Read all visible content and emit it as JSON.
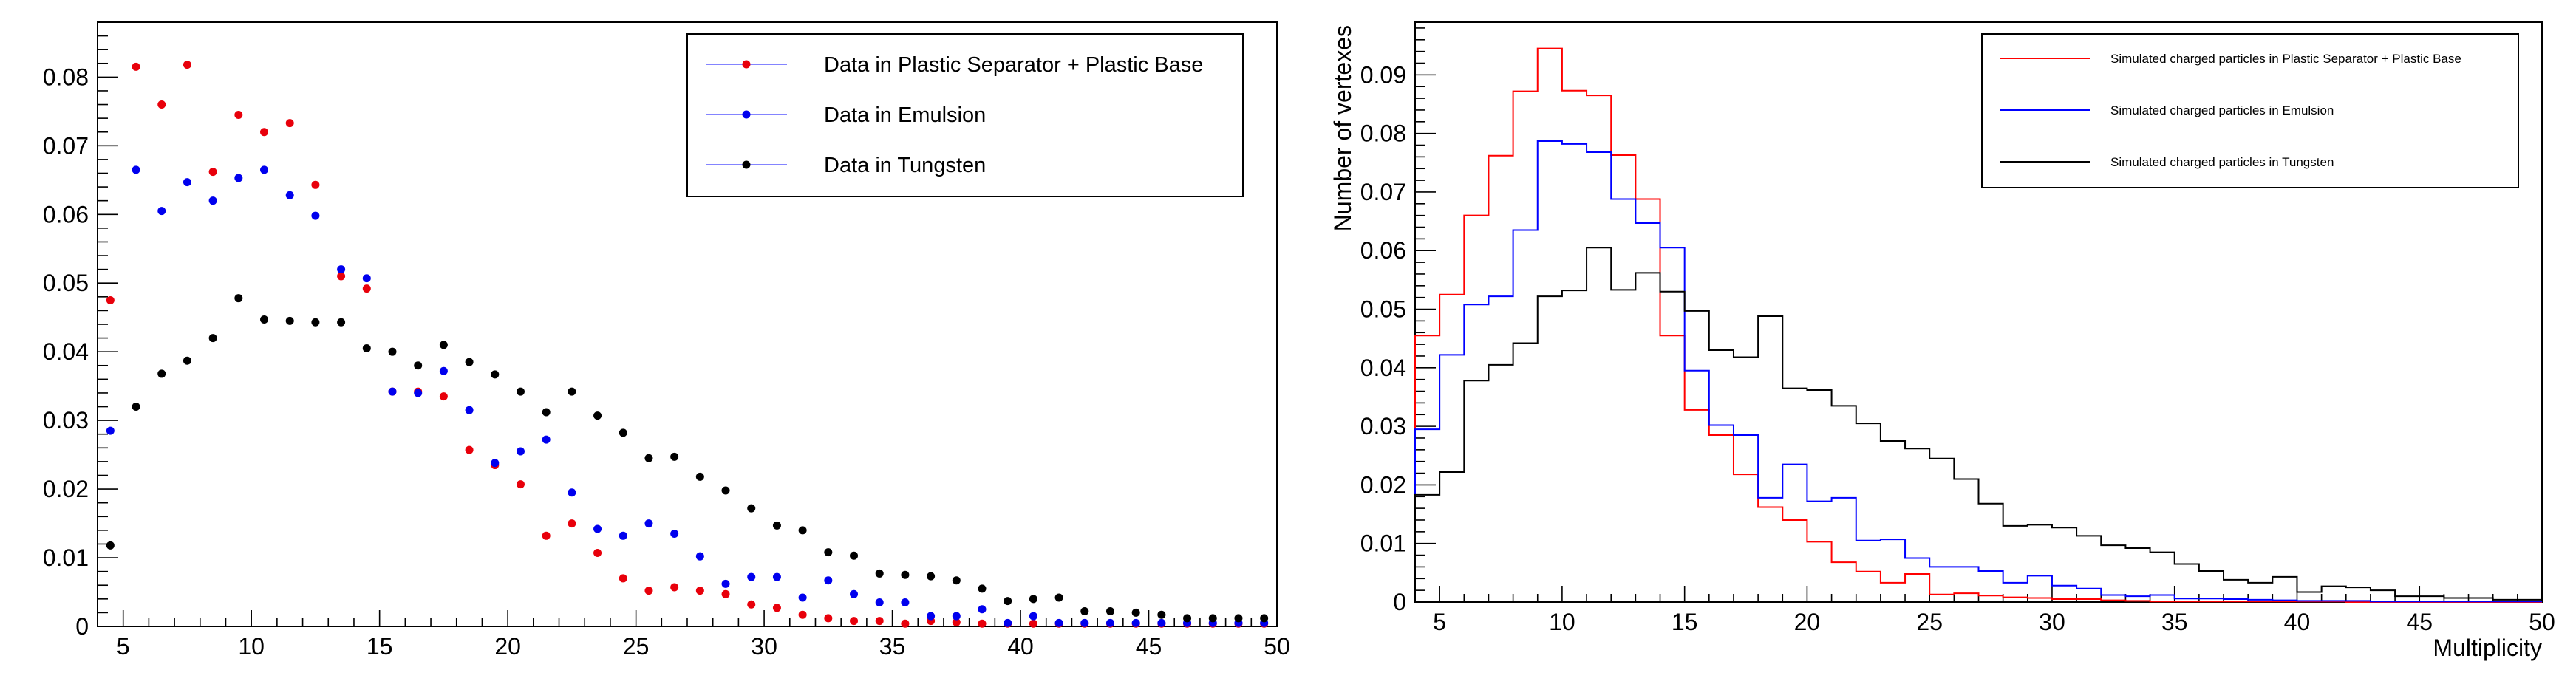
{
  "chart_data": [
    {
      "type": "scatter",
      "title": "",
      "xlabel": "",
      "ylabel": "",
      "xlim": [
        4,
        50
      ],
      "ylim": [
        0,
        0.088
      ],
      "x_ticks": [
        5,
        10,
        15,
        20,
        25,
        30,
        35,
        40,
        45,
        50
      ],
      "y_ticks": [
        0.01,
        0.02,
        0.03,
        0.04,
        0.05,
        0.06,
        0.07,
        0.08
      ],
      "y_tick_zero": "0",
      "legend_position": "top-right",
      "series": [
        {
          "name": "Data in Plastic Separator + Plastic Base",
          "color": "#e8000b",
          "x": [
            4.5,
            5.5,
            6.5,
            7.5,
            8.5,
            9.5,
            10.5,
            11.5,
            12.5,
            13.5,
            14.5,
            15.5,
            16.5,
            17.5,
            18.5,
            19.5,
            20.5,
            21.5,
            22.5,
            23.5,
            24.5,
            25.5,
            26.5,
            27.5,
            28.5,
            29.5,
            30.5,
            31.5,
            32.5,
            33.5,
            34.5,
            35.5,
            36.5,
            37.5,
            38.5,
            39.5,
            40.5,
            41.5,
            42.5,
            43.5,
            44.5,
            45.5,
            46.5,
            47.5,
            48.5,
            49.5
          ],
          "values": [
            0.0475,
            0.0815,
            0.076,
            0.0818,
            0.0662,
            0.0745,
            0.072,
            0.0733,
            0.0643,
            0.051,
            0.0492,
            0.0342,
            0.0342,
            0.0335,
            0.0257,
            0.0235,
            0.0207,
            0.0132,
            0.015,
            0.0107,
            0.007,
            0.0052,
            0.0057,
            0.0052,
            0.0047,
            0.0032,
            0.0027,
            0.0017,
            0.0012,
            0.0008,
            0.0008,
            0.0004,
            0.0008,
            0.0006,
            0.0004,
            0.0004,
            0.0004,
            0.0004,
            0.0004,
            0.0004,
            0.0004,
            0.0004,
            0.0004,
            0.0004,
            0.0004,
            0.0004
          ]
        },
        {
          "name": "Data in Emulsion",
          "color": "#0000ee",
          "x": [
            4.5,
            5.5,
            6.5,
            7.5,
            8.5,
            9.5,
            10.5,
            11.5,
            12.5,
            13.5,
            14.5,
            15.5,
            16.5,
            17.5,
            18.5,
            19.5,
            20.5,
            21.5,
            22.5,
            23.5,
            24.5,
            25.5,
            26.5,
            27.5,
            28.5,
            29.5,
            30.5,
            31.5,
            32.5,
            33.5,
            34.5,
            35.5,
            36.5,
            37.5,
            38.5,
            39.5,
            40.5,
            41.5,
            42.5,
            43.5,
            44.5,
            45.5,
            46.5,
            47.5,
            48.5,
            49.5
          ],
          "values": [
            0.0285,
            0.0665,
            0.0605,
            0.0647,
            0.062,
            0.0653,
            0.0665,
            0.0628,
            0.0598,
            0.052,
            0.0507,
            0.0342,
            0.034,
            0.0372,
            0.0315,
            0.0238,
            0.0255,
            0.0272,
            0.0195,
            0.0142,
            0.0132,
            0.015,
            0.0135,
            0.0102,
            0.0062,
            0.0072,
            0.0072,
            0.0042,
            0.0067,
            0.0047,
            0.0035,
            0.0035,
            0.0015,
            0.0015,
            0.0025,
            0.0005,
            0.0015,
            0.0005,
            0.0005,
            0.0005,
            0.0005,
            0.0005,
            0.0005,
            0.0005,
            0.0005,
            0.0005
          ]
        },
        {
          "name": "Data in Tungsten",
          "color": "#000000",
          "x": [
            4.5,
            5.5,
            6.5,
            7.5,
            8.5,
            9.5,
            10.5,
            11.5,
            12.5,
            13.5,
            14.5,
            15.5,
            16.5,
            17.5,
            18.5,
            19.5,
            20.5,
            21.5,
            22.5,
            23.5,
            24.5,
            25.5,
            26.5,
            27.5,
            28.5,
            29.5,
            30.5,
            31.5,
            32.5,
            33.5,
            34.5,
            35.5,
            36.5,
            37.5,
            38.5,
            39.5,
            40.5,
            41.5,
            42.5,
            43.5,
            44.5,
            45.5,
            46.5,
            47.5,
            48.5,
            49.5
          ],
          "values": [
            0.0118,
            0.032,
            0.0368,
            0.0387,
            0.042,
            0.0478,
            0.0447,
            0.0445,
            0.0443,
            0.0443,
            0.0405,
            0.04,
            0.038,
            0.041,
            0.0385,
            0.0367,
            0.0342,
            0.0312,
            0.0342,
            0.0307,
            0.0282,
            0.0245,
            0.0247,
            0.0218,
            0.0198,
            0.0172,
            0.0147,
            0.014,
            0.0108,
            0.0103,
            0.0077,
            0.0075,
            0.0073,
            0.0067,
            0.0055,
            0.0037,
            0.004,
            0.0042,
            0.0022,
            0.0022,
            0.002,
            0.0017,
            0.0012,
            0.0012,
            0.0012,
            0.0012
          ]
        }
      ]
    },
    {
      "type": "line",
      "title": "",
      "xlabel": "Multiplicity",
      "ylabel": "Number of vertexes",
      "xlim": [
        4,
        50
      ],
      "ylim": [
        0,
        0.099
      ],
      "x_ticks": [
        5,
        10,
        15,
        20,
        25,
        30,
        35,
        40,
        45,
        50
      ],
      "y_ticks": [
        0.01,
        0.02,
        0.03,
        0.04,
        0.05,
        0.06,
        0.07,
        0.08,
        0.09
      ],
      "y_tick_zero": "0",
      "legend_position": "top-right",
      "bin_edges": [
        4,
        5,
        6,
        7,
        8,
        9,
        10,
        11,
        12,
        13,
        14,
        15,
        16,
        17,
        18,
        19,
        20,
        21,
        22,
        23,
        24,
        25,
        26,
        27,
        28,
        29,
        30,
        31,
        32,
        33,
        34,
        35,
        36,
        37,
        38,
        39,
        40,
        41,
        42,
        43,
        44,
        45,
        46,
        47,
        48,
        49,
        50
      ],
      "series": [
        {
          "name": "Simulated charged particles in Plastic Separator + Plastic Base",
          "color": "#ff0000",
          "values": [
            0.0455,
            0.0525,
            0.066,
            0.0762,
            0.0872,
            0.0945,
            0.0873,
            0.0865,
            0.0763,
            0.0688,
            0.0455,
            0.0328,
            0.0285,
            0.0218,
            0.0162,
            0.014,
            0.0103,
            0.0068,
            0.0052,
            0.0033,
            0.0048,
            0.0013,
            0.0015,
            0.0011,
            0.0008,
            0.0007,
            0.0005,
            0.0005,
            0.0003,
            0.0002,
            0.0001,
            0.0001,
            0.0001,
            0.0001,
            0.0001,
            0.0001,
            0.0001,
            0.0001,
            0.0,
            0.0,
            0.0,
            0.0,
            0.0,
            0.0,
            0.0,
            0.0
          ]
        },
        {
          "name": "Simulated charged particles in Emulsion",
          "color": "#0000ff",
          "values": [
            0.0295,
            0.0422,
            0.0508,
            0.0522,
            0.0635,
            0.0787,
            0.0782,
            0.0768,
            0.0688,
            0.0647,
            0.0605,
            0.0395,
            0.0302,
            0.0285,
            0.0178,
            0.0235,
            0.0172,
            0.0178,
            0.0105,
            0.0107,
            0.0075,
            0.006,
            0.006,
            0.0053,
            0.0033,
            0.0045,
            0.0028,
            0.0023,
            0.0012,
            0.001,
            0.0012,
            0.0006,
            0.0006,
            0.0005,
            0.0004,
            0.0003,
            0.0002,
            0.0002,
            0.0002,
            0.0001,
            0.0001,
            0.0001,
            0.0001,
            0.0001,
            0.0001,
            0.0001
          ]
        },
        {
          "name": "Simulated charged particles in Tungsten",
          "color": "#000000",
          "values": [
            0.0183,
            0.0222,
            0.0378,
            0.0405,
            0.0442,
            0.0522,
            0.0532,
            0.0605,
            0.0533,
            0.0562,
            0.053,
            0.0497,
            0.043,
            0.0418,
            0.0488,
            0.0365,
            0.0362,
            0.0335,
            0.0305,
            0.0275,
            0.0262,
            0.0245,
            0.021,
            0.0168,
            0.013,
            0.0132,
            0.0127,
            0.0113,
            0.0097,
            0.0092,
            0.0085,
            0.0065,
            0.0053,
            0.0038,
            0.0033,
            0.0043,
            0.0017,
            0.0027,
            0.0025,
            0.002,
            0.001,
            0.001,
            0.0007,
            0.0007,
            0.0004,
            0.0004
          ]
        }
      ]
    }
  ]
}
